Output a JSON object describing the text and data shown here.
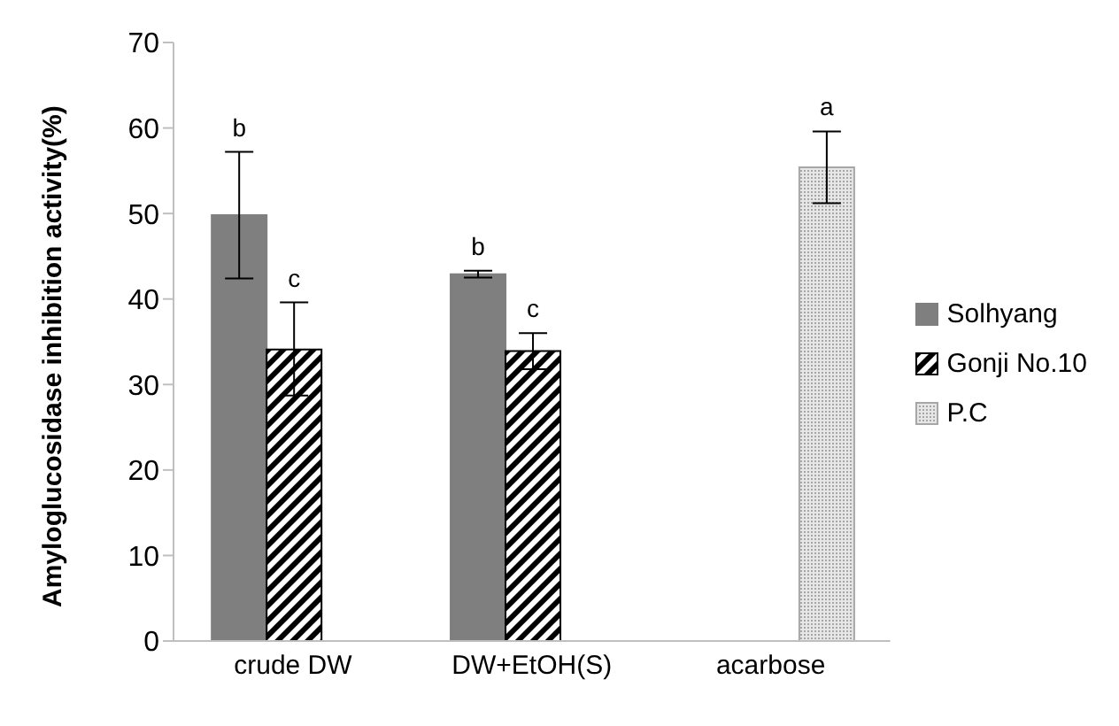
{
  "chart_data": {
    "type": "bar",
    "ylabel": "Amyloglucosidase inhibition activity(%)",
    "categories": [
      "crude DW",
      "DW+EtOH(S)",
      "acarbose"
    ],
    "series": [
      {
        "name": "Solhyang",
        "color": "#7f7f7f",
        "values": [
          49.8,
          42.9,
          null
        ],
        "errors": [
          [
            42.4,
            57.2
          ],
          [
            42.5,
            43.3
          ],
          null
        ],
        "value_labels": [
          "b",
          "b",
          null
        ]
      },
      {
        "name": "Gonji No.10",
        "color": "#000000",
        "values": [
          34.1,
          33.9,
          null
        ],
        "errors": [
          [
            28.7,
            39.6
          ],
          [
            31.8,
            36.0
          ],
          null
        ],
        "value_labels": [
          "c",
          "c",
          null
        ]
      },
      {
        "name": "P.C",
        "color": "#a6a6a6",
        "values": [
          null,
          null,
          55.4
        ],
        "errors": [
          null,
          null,
          [
            51.2,
            59.6
          ]
        ],
        "value_labels": [
          null,
          null,
          "a"
        ]
      }
    ],
    "ylim": [
      0,
      70
    ],
    "yticks": [
      0,
      10,
      20,
      30,
      40,
      50,
      60,
      70
    ],
    "legend": "right"
  }
}
